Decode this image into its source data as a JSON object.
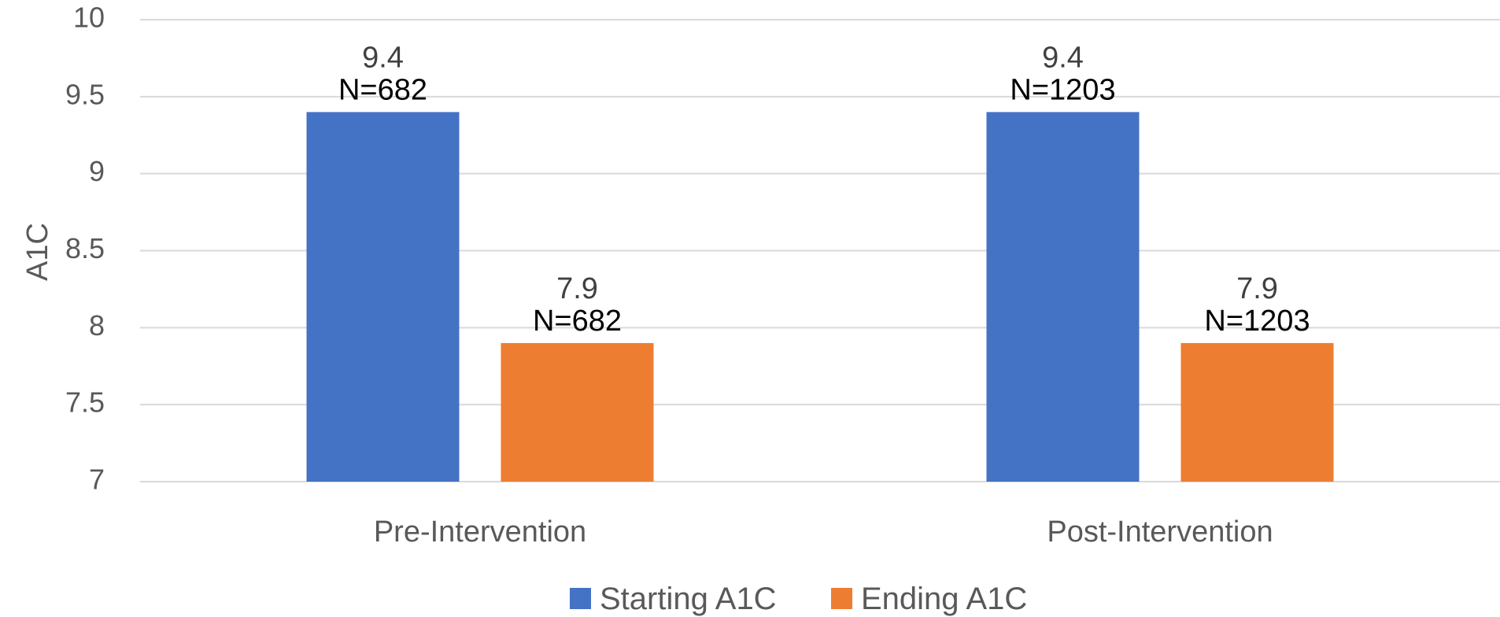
{
  "chart_data": {
    "type": "bar",
    "ylabel": "A1C",
    "xlabel": "",
    "ylim": [
      7,
      10
    ],
    "yticks": [
      7,
      7.5,
      8,
      8.5,
      9,
      9.5,
      10
    ],
    "ytick_labels": [
      "7",
      "7.5",
      "8",
      "8.5",
      "9",
      "9.5",
      "10"
    ],
    "grid": true,
    "legend_position": "bottom",
    "categories": [
      "Pre-Intervention",
      "Post-Intervention"
    ],
    "series": [
      {
        "name": "Starting A1C",
        "color": "#4472c4",
        "values": [
          9.4,
          9.4
        ],
        "value_labels": [
          "9.4",
          "9.4"
        ],
        "n_labels": [
          "N=682",
          "N=1203"
        ]
      },
      {
        "name": "Ending A1C",
        "color": "#ed7d31",
        "values": [
          7.9,
          7.9
        ],
        "value_labels": [
          "7.9",
          "7.9"
        ],
        "n_labels": [
          "N=682",
          "N=1203"
        ]
      }
    ]
  }
}
